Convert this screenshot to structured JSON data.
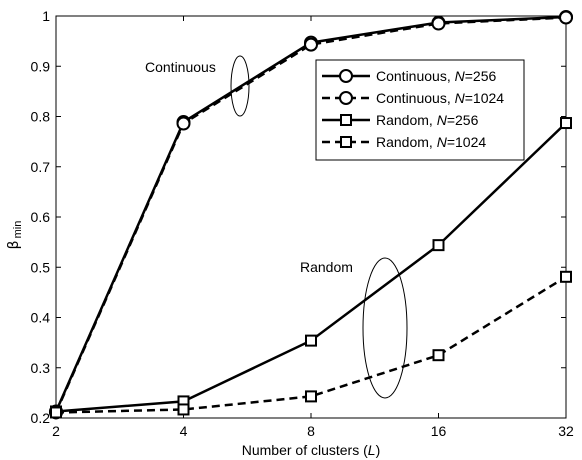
{
  "chart_data": {
    "type": "line",
    "xlabel_prefix": "Number of clusters (",
    "xlabel_var": "L",
    "xlabel_suffix": ")",
    "ylabel_main": "β",
    "ylabel_sub": "min",
    "x": [
      2,
      4,
      8,
      16,
      32
    ],
    "x_ticks": [
      "2",
      "4",
      "8",
      "16",
      "32"
    ],
    "x_scale": "log2",
    "ylim": [
      0.2,
      1.0
    ],
    "y_ticks": [
      "0.2",
      "0.3",
      "0.4",
      "0.5",
      "0.6",
      "0.7",
      "0.8",
      "0.9",
      "1"
    ],
    "grid": false,
    "legend_position": "top-right",
    "series": [
      {
        "name_prefix": "Continuous, ",
        "name_var": "N",
        "name_value": "=256",
        "marker": "circle",
        "dash": "solid",
        "values": [
          0.213,
          0.789,
          0.947,
          0.987,
          0.998
        ]
      },
      {
        "name_prefix": "Continuous, ",
        "name_var": "N",
        "name_value": "=1024",
        "marker": "circle",
        "dash": "dashed",
        "values": [
          0.211,
          0.786,
          0.943,
          0.985,
          0.997
        ]
      },
      {
        "name_prefix": "Random, ",
        "name_var": "N",
        "name_value": "=256",
        "marker": "square",
        "dash": "solid",
        "values": [
          0.213,
          0.233,
          0.354,
          0.544,
          0.787
        ]
      },
      {
        "name_prefix": "Random, ",
        "name_var": "N",
        "name_value": "=1024",
        "marker": "square",
        "dash": "dashed",
        "values": [
          0.211,
          0.217,
          0.243,
          0.325,
          0.481
        ]
      }
    ],
    "annotations": [
      {
        "text": "Continuous"
      },
      {
        "text": "Random"
      }
    ]
  }
}
